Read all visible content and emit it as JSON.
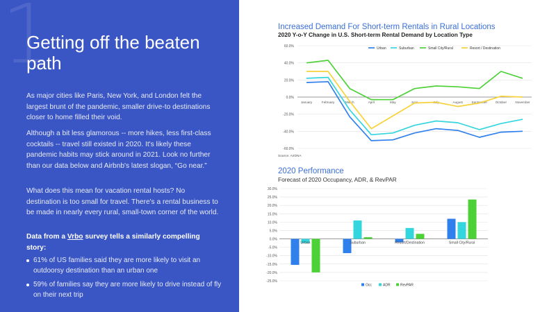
{
  "slide": {
    "number": "1",
    "title": "Getting off the beaten path",
    "paragraphs": [
      "As major cities like Paris, New York, and London felt the largest brunt of the pandemic, smaller drive-to destinations closer to home filled their void.",
      "Although a bit less glamorous -- more hikes, less first-class cocktails -- travel still existed in 2020. It's likely these pandemic habits may stick around in 2021. Look no further than our data below and Airbnb's latest slogan, “Go near.”",
      "What does this mean for vacation rental hosts? No destination is too small for travel. There's a rental business to be made in nearly every rural, small-town corner of the world."
    ],
    "survey_heading_prefix": "Data from a ",
    "survey_link": "Vrbo",
    "survey_heading_suffix": " survey tells a similarly compelling story:",
    "bullets": [
      "61% of US families said they are more likely to visit an outdoorsy destination than an urban one",
      "59% of families say they are more likely to drive instead of fly on their next trip"
    ]
  },
  "colors": {
    "panel_bg": "#3a55c4",
    "urban": "#2f80ed",
    "suburban": "#33d6df",
    "small_city_rural": "#4cd137",
    "resort": "#f7d23a",
    "occ": "#2f80ed",
    "adr": "#33d6df",
    "revpar": "#4cd137",
    "title_blue": "#3a6fd8"
  },
  "chart_data": [
    {
      "type": "line",
      "title": "Increased Demand For Short-term Rentals in Rural Locations",
      "subtitle": "2020 Y-o-Y Change in U.S. Short-term Rental Demand by Location Type",
      "categories": [
        "January",
        "February",
        "March",
        "April",
        "May",
        "June",
        "July",
        "August",
        "September",
        "October",
        "November"
      ],
      "y_ticks": [
        "60.0%",
        "40.0%",
        "20.0%",
        "0.0%",
        "-20.0%",
        "-40.0%",
        "-60.0%"
      ],
      "ylim": [
        -60,
        60
      ],
      "unit": "%",
      "legend_position": "top-right",
      "source": "Source: AirDNA",
      "grid": true,
      "series": [
        {
          "name": "Urban",
          "color_key": "urban",
          "values": [
            17,
            18,
            -23,
            -51,
            -50,
            -42,
            -37,
            -39,
            -47,
            -41,
            -40
          ]
        },
        {
          "name": "Suburban",
          "color_key": "suburban",
          "values": [
            22,
            23,
            -15,
            -44,
            -42,
            -33,
            -28,
            -30,
            -38,
            -31,
            -26
          ]
        },
        {
          "name": "Small City/Rural",
          "color_key": "small_city_rural",
          "values": [
            40,
            43,
            10,
            -3,
            -3,
            10,
            13,
            12,
            10,
            30,
            22
          ]
        },
        {
          "name": "Resort / Destination",
          "color_key": "resort",
          "values": [
            30,
            30,
            -5,
            -37,
            -22,
            -7,
            -6,
            -11,
            -7,
            1,
            0
          ]
        }
      ]
    },
    {
      "type": "bar",
      "title": "2020 Performance",
      "subtitle": "Forecast of 2020 Occupancy, ADR, & RevPAR",
      "categories": [
        "Urban",
        "Suburban",
        "Resort/Destination",
        "Small City/Rural"
      ],
      "y_ticks": [
        "30.0%",
        "25.0%",
        "20.0%",
        "15.0%",
        "10.0%",
        "5.0%",
        "0.0%",
        "-5.0%",
        "-10.0%",
        "-15.0%",
        "-20.0%",
        "-25.0%"
      ],
      "ylim": [
        -25,
        30
      ],
      "unit": "%",
      "legend_position": "bottom-center",
      "grid": true,
      "series": [
        {
          "name": "Occ",
          "color_key": "occ",
          "values": [
            -15.5,
            -8.5,
            -2,
            12
          ]
        },
        {
          "name": "ADR",
          "color_key": "adr",
          "values": [
            -2.5,
            11,
            6.5,
            10
          ]
        },
        {
          "name": "RevPAR",
          "color_key": "revpar",
          "values": [
            -20,
            1,
            3,
            23.5
          ]
        }
      ]
    }
  ]
}
